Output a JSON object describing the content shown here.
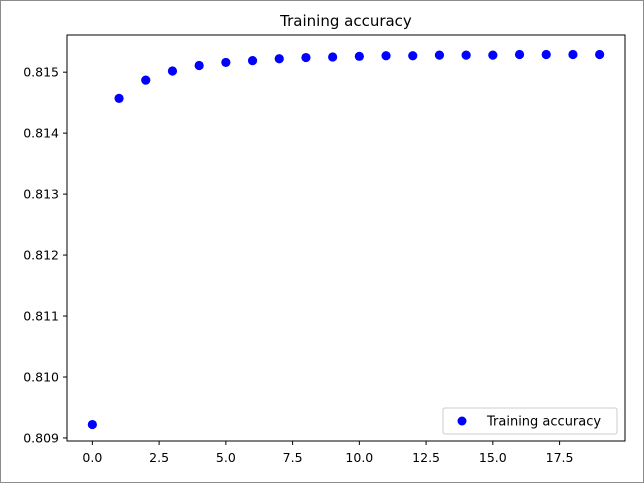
{
  "chart_data": {
    "type": "scatter",
    "title": "Training accuracy",
    "xlabel": "",
    "ylabel": "",
    "xlim": [
      -0.95,
      19.95
    ],
    "ylim": [
      0.80895,
      0.81561
    ],
    "xticks": [
      0.0,
      2.5,
      5.0,
      7.5,
      10.0,
      12.5,
      15.0,
      17.5
    ],
    "xtick_labels": [
      "0.0",
      "2.5",
      "5.0",
      "7.5",
      "10.0",
      "12.5",
      "15.0",
      "17.5"
    ],
    "yticks": [
      0.809,
      0.81,
      0.811,
      0.812,
      0.813,
      0.814,
      0.815
    ],
    "ytick_labels": [
      "0.809",
      "0.810",
      "0.811",
      "0.812",
      "0.813",
      "0.814",
      "0.815"
    ],
    "grid": false,
    "legend_position": "lower-right",
    "series": [
      {
        "name": "Training accuracy",
        "color": "#0000ff",
        "marker": "circle",
        "x": [
          0,
          1,
          2,
          3,
          4,
          5,
          6,
          7,
          8,
          9,
          10,
          11,
          12,
          13,
          14,
          15,
          16,
          17,
          18,
          19
        ],
        "y": [
          0.80922,
          0.81457,
          0.81487,
          0.81502,
          0.81511,
          0.81516,
          0.81519,
          0.81522,
          0.81524,
          0.81525,
          0.81526,
          0.81527,
          0.81527,
          0.81528,
          0.81528,
          0.81528,
          0.81529,
          0.81529,
          0.81529,
          0.81529
        ]
      }
    ]
  }
}
